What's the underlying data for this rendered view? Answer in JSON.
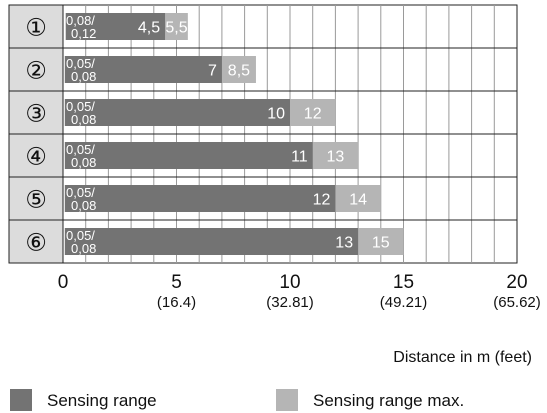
{
  "chart_data": {
    "type": "bar",
    "orientation": "horizontal",
    "categories": [
      "①",
      "②",
      "③",
      "④",
      "⑤",
      "⑥"
    ],
    "start_labels": [
      [
        "0,08/",
        "0,12"
      ],
      [
        "0,05/",
        "0,08"
      ],
      [
        "0,05/",
        "0,08"
      ],
      [
        "0,05/",
        "0,08"
      ],
      [
        "0,05/",
        "0,08"
      ],
      [
        "0,05/",
        "0,08"
      ]
    ],
    "series": [
      {
        "name": "Sensing range",
        "color": "#737373",
        "start": [
          0.12,
          0.08,
          0.08,
          0.08,
          0.08,
          0.08
        ],
        "values": [
          4.5,
          7,
          10,
          11,
          12,
          13
        ],
        "labels": [
          "4,5",
          "7",
          "10",
          "11",
          "12",
          "13"
        ]
      },
      {
        "name": "Sensing range max.",
        "color": "#b5b5b5",
        "values": [
          5.5,
          8.5,
          12,
          13,
          14,
          15
        ],
        "labels": [
          "5,5",
          "8,5",
          "12",
          "13",
          "14",
          "15"
        ]
      }
    ],
    "x_ticks": [
      0,
      5,
      10,
      15,
      20
    ],
    "x_tick_labels": [
      "0",
      "5",
      "10",
      "15",
      "20"
    ],
    "x_tick_sublabels": [
      "",
      "(16.4)",
      "(32.81)",
      "(49.21)",
      "(65.62)"
    ],
    "xlim": [
      0,
      20
    ],
    "xlabel": "Distance in m (feet)",
    "grid": true,
    "legend_position": "bottom"
  }
}
